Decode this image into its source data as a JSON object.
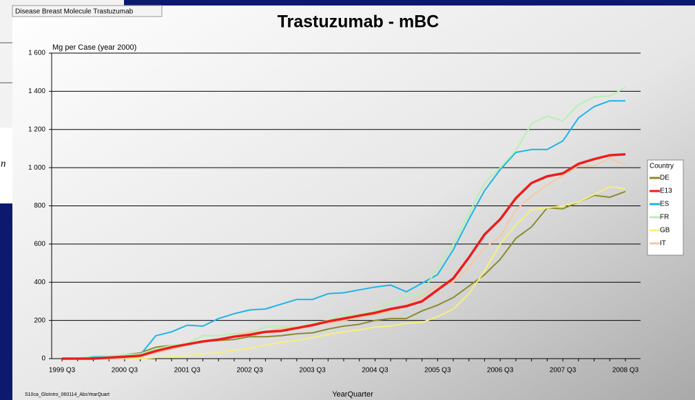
{
  "header": {
    "breadcrumb": "Disease Breast Molecule Trastuzumab",
    "fragment": "n"
  },
  "footer": {
    "source": "S10ca_GloIntro_060114_AbsYearQuart"
  },
  "chart_data": {
    "type": "line",
    "title": "Trastuzumab - mBC",
    "y_label": "Mg per Case (year 2000)",
    "x_label": "YearQuarter",
    "legend_title": "Country",
    "legend": "right",
    "grid": true,
    "categories": [
      "1999 Q3",
      null,
      null,
      null,
      "2000 Q3",
      null,
      null,
      null,
      "2001 Q3",
      null,
      null,
      null,
      "2002 Q3",
      null,
      null,
      null,
      "2003 Q3",
      null,
      null,
      null,
      "2004 Q3",
      null,
      null,
      null,
      "2005 Q3",
      null,
      null,
      null,
      "2006 Q3",
      null,
      null,
      null,
      "2007 Q3",
      null,
      null,
      null,
      "2008 Q3"
    ],
    "ylim": [
      0,
      1600
    ],
    "yticks": [
      0,
      200,
      400,
      600,
      800,
      {
        "value": 1000,
        "label": "1 000"
      },
      {
        "value": 1200,
        "label": "1 200"
      },
      {
        "value": 1400,
        "label": "1 400"
      },
      {
        "value": 1600,
        "label": "1 600"
      }
    ],
    "series": [
      {
        "name": "DE",
        "color": "#8a8a2c",
        "values": [
          0,
          0,
          5,
          10,
          20,
          30,
          60,
          70,
          75,
          90,
          95,
          100,
          115,
          115,
          120,
          130,
          135,
          155,
          170,
          180,
          200,
          210,
          210,
          250,
          280,
          320,
          380,
          440,
          520,
          630,
          690,
          790,
          785,
          820,
          855,
          845,
          875
        ]
      },
      {
        "name": "E13",
        "color": "#ee1c1c",
        "values": [
          0,
          0,
          0,
          5,
          10,
          15,
          40,
          60,
          75,
          90,
          100,
          115,
          125,
          140,
          145,
          160,
          175,
          195,
          210,
          225,
          240,
          260,
          275,
          300,
          360,
          420,
          530,
          650,
          730,
          840,
          920,
          955,
          970,
          1020,
          1045,
          1065,
          1070
        ]
      },
      {
        "name": "ES",
        "color": "#1ab4ea",
        "values": [
          0,
          0,
          10,
          10,
          20,
          20,
          120,
          140,
          175,
          170,
          210,
          235,
          255,
          260,
          285,
          310,
          310,
          340,
          345,
          360,
          375,
          385,
          350,
          395,
          440,
          570,
          730,
          880,
          990,
          1080,
          1095,
          1095,
          1140,
          1260,
          1320,
          1350,
          1350
        ]
      },
      {
        "name": "FR",
        "color": "#b6f0b2",
        "values": [
          0,
          0,
          15,
          15,
          20,
          25,
          50,
          70,
          80,
          120,
          120,
          130,
          135,
          165,
          170,
          165,
          185,
          200,
          230,
          235,
          250,
          290,
          330,
          340,
          480,
          600,
          760,
          920,
          1000,
          1090,
          1230,
          1270,
          1245,
          1330,
          1370,
          1375,
          1420
        ]
      },
      {
        "name": "GB",
        "color": "#f6f07e",
        "values": [
          0,
          0,
          0,
          0,
          0,
          0,
          5,
          10,
          15,
          25,
          30,
          45,
          55,
          70,
          85,
          95,
          110,
          125,
          140,
          150,
          165,
          170,
          185,
          190,
          220,
          260,
          340,
          460,
          600,
          700,
          780,
          790,
          800,
          820,
          860,
          900,
          890
        ]
      },
      {
        "name": "IT",
        "color": "#f6c8a2",
        "values": [
          0,
          0,
          0,
          0,
          0,
          10,
          30,
          50,
          70,
          90,
          100,
          120,
          140,
          140,
          160,
          165,
          180,
          185,
          200,
          215,
          230,
          250,
          280,
          330,
          380,
          400,
          480,
          580,
          640,
          780,
          850,
          910,
          960,
          1010,
          1010,
          1050,
          1015
        ]
      }
    ]
  }
}
